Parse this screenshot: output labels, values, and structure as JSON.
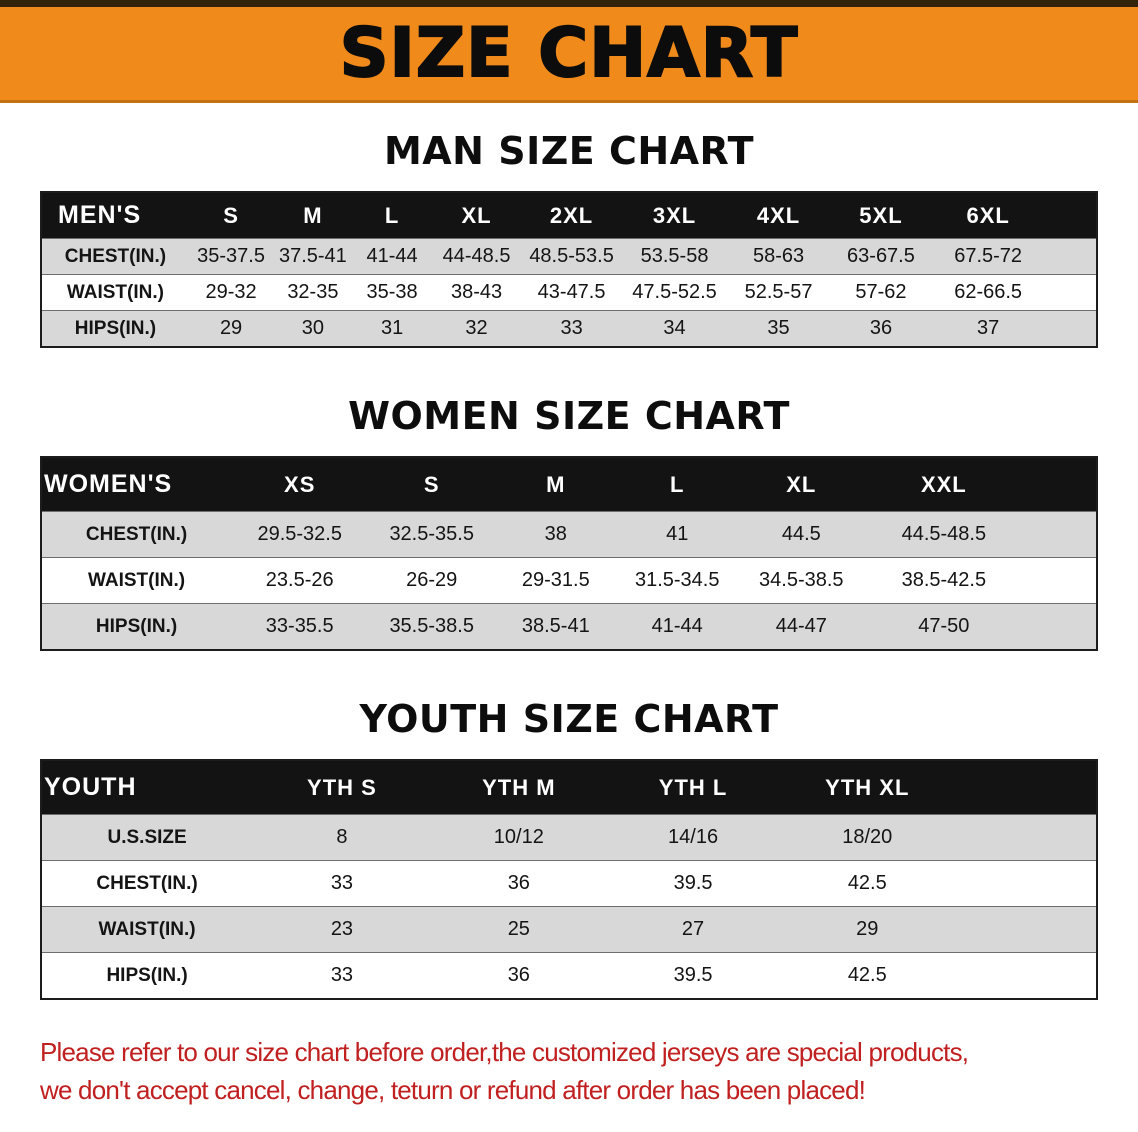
{
  "banner": {
    "title": "SIZE CHART"
  },
  "colors": {
    "banner_orange": "#F08A1B",
    "header_black": "#131313",
    "stripe_gray": "#D8D8D8",
    "notice_red": "#C02020"
  },
  "sections": [
    {
      "id": "men",
      "heading": "MAN SIZE CHART",
      "table": {
        "header": [
          "MEN'S",
          "S",
          "M",
          "L",
          "XL",
          "2XL",
          "3XL",
          "4XL",
          "5XL",
          "6XL"
        ],
        "rows": [
          [
            "CHEST(IN.)",
            "35-37.5",
            "37.5-41",
            "41-44",
            "44-48.5",
            "48.5-53.5",
            "53.5-58",
            "58-63",
            "63-67.5",
            "67.5-72"
          ],
          [
            "WAIST(IN.)",
            "29-32",
            "32-35",
            "35-38",
            "38-43",
            "43-47.5",
            "47.5-52.5",
            "52.5-57",
            "57-62",
            "62-66.5"
          ],
          [
            "HIPS(IN.)",
            "29",
            "30",
            "31",
            "32",
            "33",
            "34",
            "35",
            "36",
            "37"
          ]
        ]
      }
    },
    {
      "id": "women",
      "heading": "WOMEN SIZE CHART",
      "table": {
        "header": [
          "WOMEN'S",
          "XS",
          "S",
          "M",
          "L",
          "XL",
          "XXL"
        ],
        "rows": [
          [
            "CHEST(IN.)",
            "29.5-32.5",
            "32.5-35.5",
            "38",
            "41",
            "44.5",
            "44.5-48.5"
          ],
          [
            "WAIST(IN.)",
            "23.5-26",
            "26-29",
            "29-31.5",
            "31.5-34.5",
            "34.5-38.5",
            "38.5-42.5"
          ],
          [
            "HIPS(IN.)",
            "33-35.5",
            "35.5-38.5",
            "38.5-41",
            "41-44",
            "44-47",
            "47-50"
          ]
        ]
      }
    },
    {
      "id": "youth",
      "heading": "YOUTH SIZE CHART",
      "table": {
        "header": [
          "YOUTH",
          "YTH S",
          "YTH M",
          "YTH L",
          "YTH XL"
        ],
        "rows": [
          [
            "U.S.SIZE",
            "8",
            "10/12",
            "14/16",
            "18/20"
          ],
          [
            "CHEST(IN.)",
            "33",
            "36",
            "39.5",
            "42.5"
          ],
          [
            "WAIST(IN.)",
            "23",
            "25",
            "27",
            "29"
          ],
          [
            "HIPS(IN.)",
            "33",
            "36",
            "39.5",
            "42.5"
          ]
        ]
      }
    }
  ],
  "notice": {
    "line1": "Please refer to our size chart before order,the customized jerseys are special products,",
    "line2": "we don't accept cancel, change, teturn or refund after order has been placed!"
  }
}
